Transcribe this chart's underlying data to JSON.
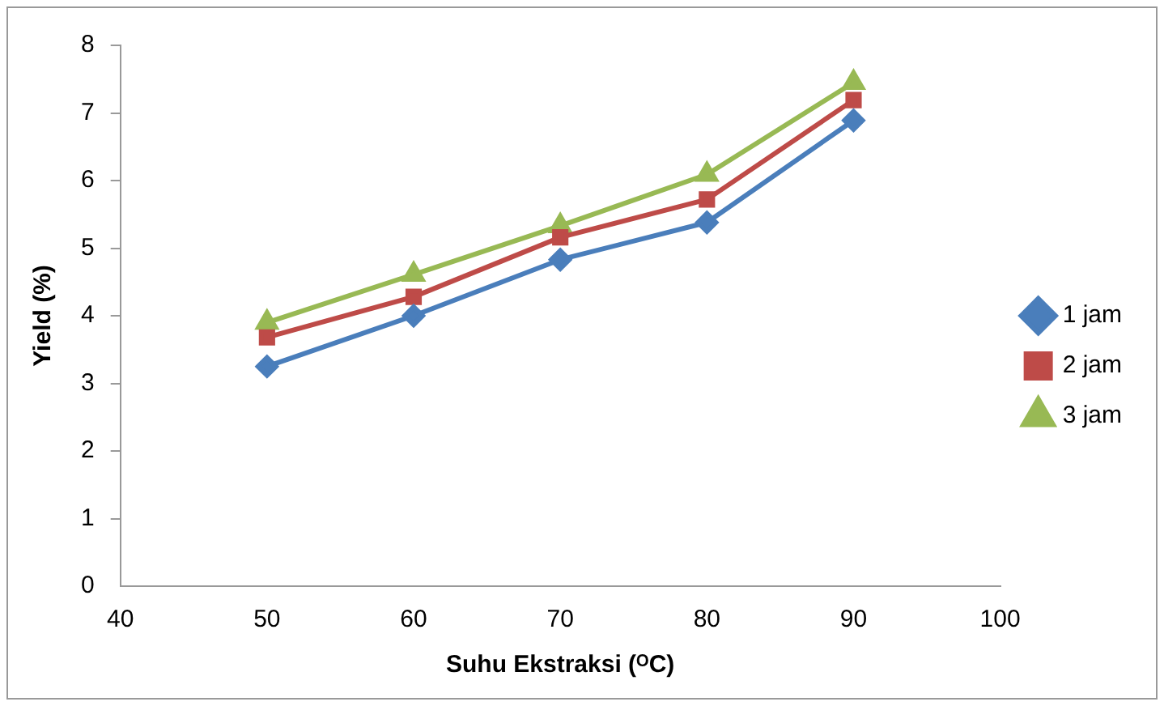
{
  "chart_data": {
    "type": "line",
    "xlabel": "Suhu Ekstraksi (ᴼC)",
    "ylabel": "Yield (%)",
    "x": [
      50,
      60,
      70,
      80,
      90
    ],
    "series": [
      {
        "name": "1 jam",
        "color": "#4a7ebb",
        "marker": "diamond",
        "values": [
          3.25,
          4.0,
          4.83,
          5.38,
          6.89
        ]
      },
      {
        "name": "2 jam",
        "color": "#be4b48",
        "marker": "square",
        "values": [
          3.68,
          4.28,
          5.16,
          5.72,
          7.19
        ]
      },
      {
        "name": "3 jam",
        "color": "#98b954",
        "marker": "triangle",
        "values": [
          3.9,
          4.61,
          5.33,
          6.09,
          7.45
        ]
      }
    ],
    "xlim": [
      40,
      100
    ],
    "xticks": [
      40,
      50,
      60,
      70,
      80,
      90,
      100
    ],
    "ylim": [
      0,
      8
    ],
    "yticks": [
      0,
      1,
      2,
      3,
      4,
      5,
      6,
      7,
      8
    ],
    "grid": false,
    "legend": "right",
    "line_style": "solid"
  }
}
